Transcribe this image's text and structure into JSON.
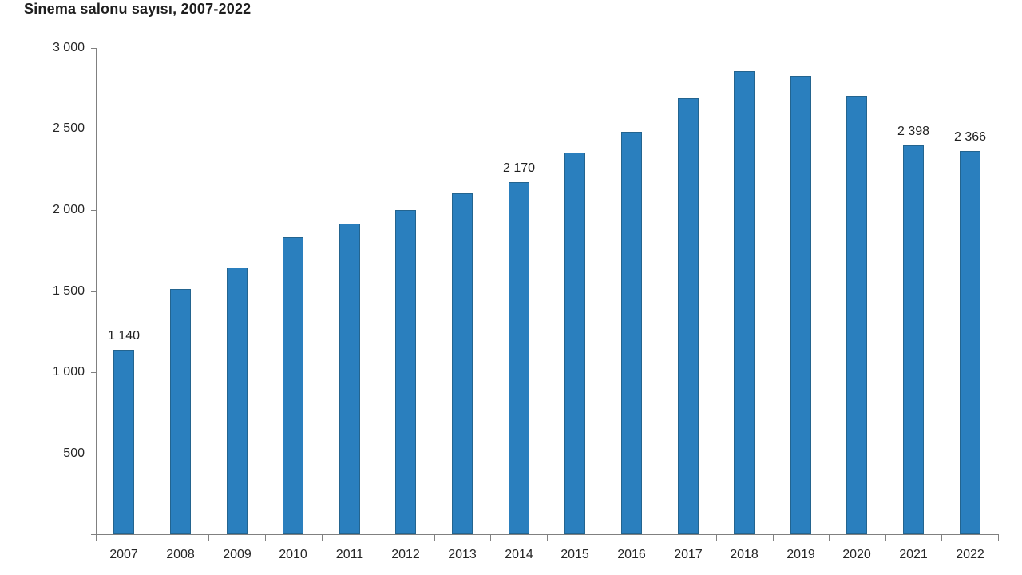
{
  "chart_data": {
    "type": "bar",
    "title": "Sinema salonu sayısı, 2007-2022",
    "categories": [
      "2007",
      "2008",
      "2009",
      "2010",
      "2011",
      "2012",
      "2013",
      "2014",
      "2015",
      "2016",
      "2017",
      "2018",
      "2019",
      "2020",
      "2021",
      "2022"
    ],
    "values": [
      1140,
      1514,
      1644,
      1834,
      1917,
      1998,
      2102,
      2170,
      2356,
      2483,
      2692,
      2858,
      2826,
      2706,
      2398,
      2366
    ],
    "data_labels": [
      "1 140",
      "",
      "",
      "",
      "",
      "",
      "",
      "2 170",
      "",
      "",
      "",
      "",
      "",
      "",
      "2 398",
      "2 366"
    ],
    "xlabel": "",
    "ylabel": "",
    "ylim": [
      0,
      3000
    ],
    "ytick_step": 500,
    "ytick_labels": [
      "500",
      "1 000",
      "1 500",
      "2 000",
      "2 500",
      "3 000"
    ],
    "grid": false,
    "legend": "none",
    "bar_color": "#2a7fbe",
    "bar_border_color": "#23648f",
    "axis_color": "#808080",
    "text_color": "#262626",
    "title_color": "#1f1f1f"
  }
}
